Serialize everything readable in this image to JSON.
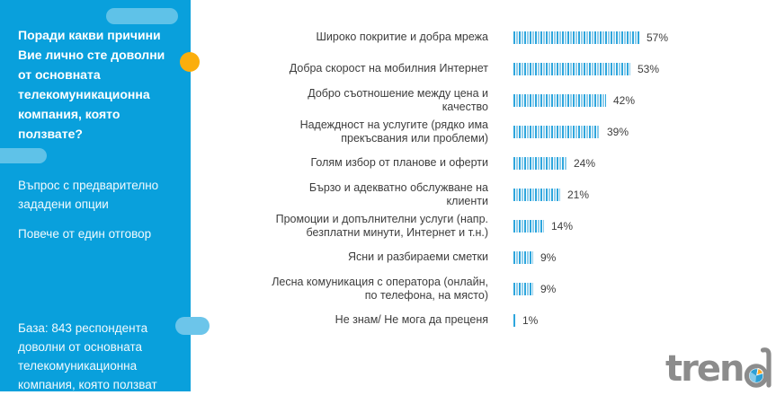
{
  "sidebar": {
    "title": "Поради какви причини Вие лично сте доволни от основната телекомуникационна компания, която ползвате?",
    "note1": "Въпрос с предварително зададени опции",
    "note2": "Повече от един отговор",
    "base": "База:  843 респондента доволни от основната телекомуникационна компания, която ползват"
  },
  "chart_data": {
    "type": "bar",
    "orientation": "horizontal",
    "categories": [
      "Широко покритие и добра мрежа",
      "Добра скорост на мобилния Интернет",
      "Добро съотношение между цена и качество",
      "Надеждност на услугите (рядко има прекъсвания или проблеми)",
      "Голям избор от планове и оферти",
      "Бързо и адекватно обслужване на клиенти",
      "Промоции и допълнителни услуги (напр. безплатни минути, Интернет и т.н.)",
      "Ясни и разбираеми сметки",
      "Лесна комуникация с оператора (онлайн, по телефона, на място)",
      "Не знам/ Не мога да преценя"
    ],
    "values": [
      57,
      53,
      42,
      39,
      24,
      21,
      14,
      9,
      9,
      1
    ],
    "value_suffix": "%",
    "title": "",
    "xlabel": "",
    "ylabel": "",
    "xlim": [
      0,
      60
    ],
    "axes_visible": false,
    "grid": false,
    "data_labels": true,
    "legend": "none",
    "bar_fill_style": "vertical-stripes",
    "bar_colors": {
      "stripe_dark": "#2EA6DD",
      "stripe_light": "#8FCEEC"
    }
  },
  "logo": {
    "text": "trend"
  },
  "colors": {
    "sidebar_bg": "#09A0DC",
    "sidebar_pill": "#5FC2E8",
    "accent_orange": "#FBAE0D",
    "text_dark": "#3D3D3D",
    "logo_gray": "#8C8C8C",
    "logo_pie_blue": "#2B9FD5",
    "logo_pie_light": "#85CBEA",
    "logo_pie_orange": "#F9A825"
  }
}
